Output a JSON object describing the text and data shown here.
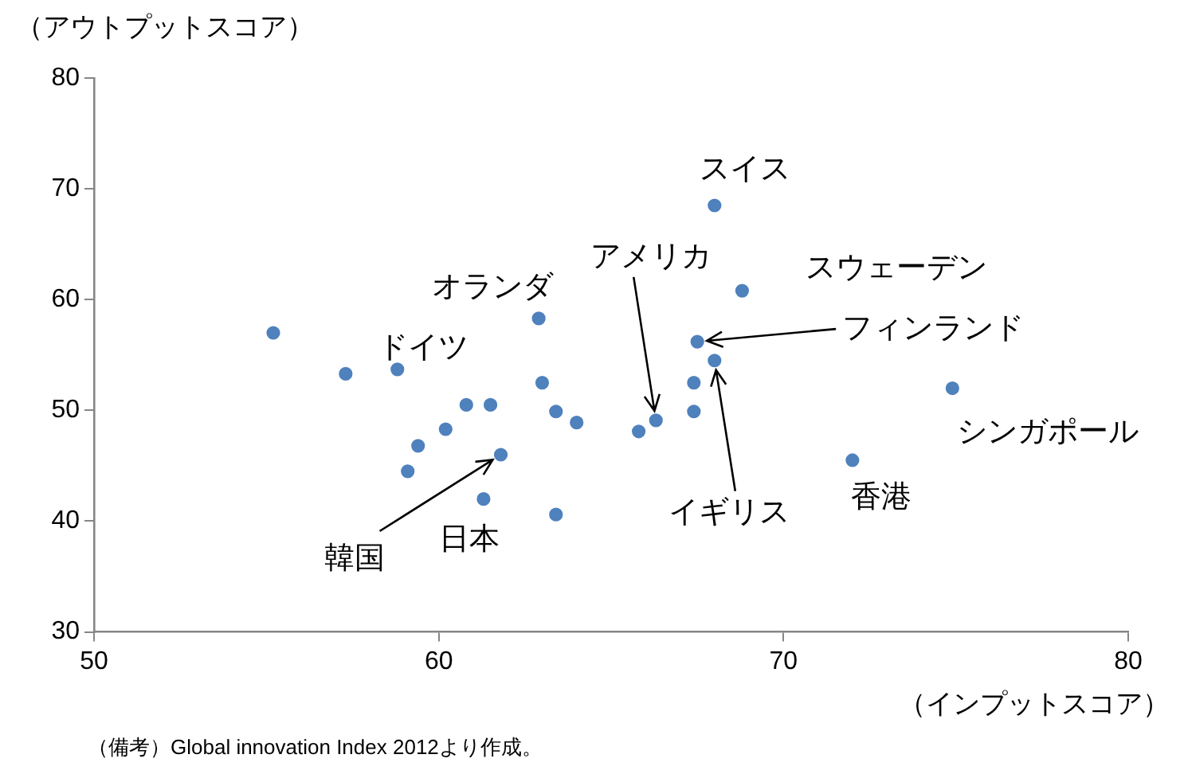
{
  "chart_data": {
    "type": "scatter",
    "ylabel": "（アウトプットスコア）",
    "xlabel": "（インプットスコア）",
    "xlim": [
      50,
      80
    ],
    "xticks": [
      50,
      60,
      70,
      80
    ],
    "ylim": [
      30,
      80
    ],
    "yticks": [
      30,
      40,
      50,
      60,
      70,
      80
    ],
    "grid": false,
    "marker": "circle",
    "legend": false,
    "series": [
      {
        "color": "#4f81bd",
        "x": [
          55.2,
          57.3,
          58.8,
          60.8,
          61.5,
          60.2,
          59.4,
          59.1,
          61.8,
          61.3,
          62.9,
          63.0,
          63.4,
          64.0,
          63.4,
          65.8,
          66.3,
          67.4,
          67.4,
          67.5,
          68.0,
          68.0,
          68.8,
          74.9,
          72.0
        ],
        "values": [
          57.0,
          53.3,
          53.7,
          50.5,
          50.5,
          48.3,
          46.8,
          44.5,
          46.0,
          42.0,
          58.3,
          52.5,
          49.9,
          48.9,
          40.6,
          48.1,
          49.1,
          52.5,
          49.9,
          56.2,
          54.5,
          68.5,
          60.8,
          52.0,
          45.5
        ]
      }
    ],
    "annotations": [
      {
        "text": "スイス",
        "x": 68.0,
        "y": 68.5
      },
      {
        "text": "スウェーデン",
        "x": 68.8,
        "y": 60.8
      },
      {
        "text": "フィンランド",
        "x": 67.5,
        "y": 56.2
      },
      {
        "text": "イギリス",
        "x": 68.0,
        "y": 54.5
      },
      {
        "text": "アメリカ",
        "x": 66.3,
        "y": 49.1
      },
      {
        "text": "オランダ",
        "x": 62.9,
        "y": 58.3
      },
      {
        "text": "ドイツ",
        "x": 58.8,
        "y": 53.7
      },
      {
        "text": "シンガポール",
        "x": 74.9,
        "y": 52.0
      },
      {
        "text": "香港",
        "x": 72.0,
        "y": 45.5
      },
      {
        "text": "日本",
        "x": 61.3,
        "y": 42.0
      },
      {
        "text": "韓国",
        "x": 61.8,
        "y": 46.0
      },
      "（備考）Global innovation Index 2012より作成。"
    ]
  }
}
